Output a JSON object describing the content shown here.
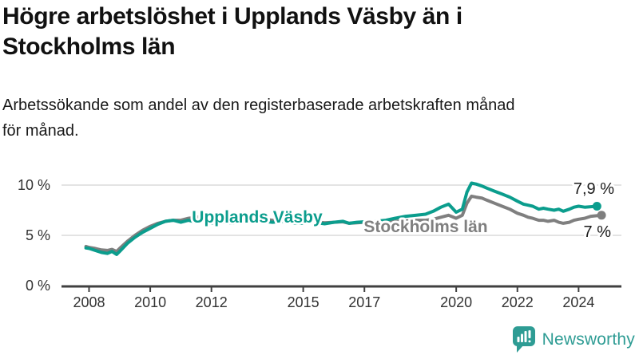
{
  "header": {
    "title": "Högre arbetslöshet i Upplands Väsby än i Stockholms län",
    "subtitle": "Arbetssökande som andel av den registerbaserade arbetskraften månad för månad."
  },
  "colors": {
    "focus_teal": "#0B9D8D",
    "comparison_gray": "#7F7F7F",
    "axis": "#404040",
    "gridline": "#DADADA",
    "tick_text": "#333333",
    "end_label_text": "#1a1a1a",
    "logo_teal": "#2E9C94"
  },
  "chart_data": {
    "type": "line",
    "title": "Högre arbetslöshet i Upplands Väsby än i Stockholms län",
    "subtitle": "Arbetssökande som andel av den registerbaserade arbetskraften månad för månad.",
    "xlabel": "",
    "ylabel": "",
    "unit": "%",
    "grid": "horizontal",
    "legend_position": "inline-labels",
    "x_axis": {
      "range": [
        2007.1,
        2025.4
      ],
      "ticks": [
        {
          "value": 2008,
          "label": "2008"
        },
        {
          "value": 2010,
          "label": "2010"
        },
        {
          "value": 2012,
          "label": "2012"
        },
        {
          "value": 2015,
          "label": "2015"
        },
        {
          "value": 2017,
          "label": "2017"
        },
        {
          "value": 2020,
          "label": "2020"
        },
        {
          "value": 2022,
          "label": "2022"
        },
        {
          "value": 2024,
          "label": "2024"
        }
      ]
    },
    "y_axis": {
      "range": [
        0,
        10.8
      ],
      "ticks": [
        {
          "value": 0,
          "label": "0 %"
        },
        {
          "value": 5,
          "label": "5 %"
        },
        {
          "value": 10,
          "label": "10 %"
        }
      ]
    },
    "series": [
      {
        "name": "Stockholms län",
        "color": "#7F7F7F",
        "end_value": 7.0,
        "end_label": "7 %",
        "points": [
          [
            2007.9,
            3.9
          ],
          [
            2008,
            3.8
          ],
          [
            2008.2,
            3.7
          ],
          [
            2008.4,
            3.55
          ],
          [
            2008.6,
            3.5
          ],
          [
            2008.75,
            3.6
          ],
          [
            2008.9,
            3.4
          ],
          [
            2009,
            3.7
          ],
          [
            2009.25,
            4.4
          ],
          [
            2009.5,
            5.0
          ],
          [
            2009.75,
            5.5
          ],
          [
            2010,
            5.9
          ],
          [
            2010.25,
            6.2
          ],
          [
            2010.5,
            6.4
          ],
          [
            2010.75,
            6.5
          ],
          [
            2011,
            6.5
          ],
          [
            2011.25,
            6.7
          ],
          [
            2011.5,
            6.8
          ],
          [
            2011.75,
            6.9
          ],
          [
            2012,
            6.7
          ],
          [
            2012.35,
            6.7
          ],
          [
            2012.7,
            6.6
          ],
          [
            2013,
            6.7
          ],
          [
            2013.35,
            6.7
          ],
          [
            2013.7,
            6.6
          ],
          [
            2014,
            6.5
          ],
          [
            2014.35,
            6.5
          ],
          [
            2014.7,
            6.4
          ],
          [
            2015,
            6.3
          ],
          [
            2015.35,
            6.35
          ],
          [
            2015.7,
            6.25
          ],
          [
            2016,
            6.3
          ],
          [
            2016.3,
            6.35
          ],
          [
            2016.5,
            6.2
          ],
          [
            2016.75,
            6.25
          ],
          [
            2017,
            6.3
          ],
          [
            2017.35,
            6.35
          ],
          [
            2017.7,
            6.3
          ],
          [
            2018,
            6.4
          ],
          [
            2018.35,
            6.45
          ],
          [
            2018.7,
            6.5
          ],
          [
            2019,
            6.5
          ],
          [
            2019.25,
            6.6
          ],
          [
            2019.5,
            6.8
          ],
          [
            2019.75,
            7.0
          ],
          [
            2020,
            6.7
          ],
          [
            2020.2,
            7.0
          ],
          [
            2020.35,
            8.2
          ],
          [
            2020.5,
            8.9
          ],
          [
            2020.65,
            8.8
          ],
          [
            2020.85,
            8.7
          ],
          [
            2021,
            8.5
          ],
          [
            2021.25,
            8.2
          ],
          [
            2021.5,
            7.9
          ],
          [
            2021.75,
            7.6
          ],
          [
            2022,
            7.2
          ],
          [
            2022.2,
            7.0
          ],
          [
            2022.35,
            6.8
          ],
          [
            2022.5,
            6.7
          ],
          [
            2022.7,
            6.5
          ],
          [
            2022.85,
            6.5
          ],
          [
            2023,
            6.4
          ],
          [
            2023.2,
            6.5
          ],
          [
            2023.35,
            6.3
          ],
          [
            2023.5,
            6.2
          ],
          [
            2023.7,
            6.3
          ],
          [
            2023.85,
            6.5
          ],
          [
            2024,
            6.6
          ],
          [
            2024.2,
            6.7
          ],
          [
            2024.4,
            6.9
          ],
          [
            2024.75,
            7.0
          ]
        ]
      },
      {
        "name": "Upplands Väsby",
        "color": "#0B9D8D",
        "end_value": 7.9,
        "end_label": "7,9 %",
        "points": [
          [
            2007.9,
            3.75
          ],
          [
            2008,
            3.7
          ],
          [
            2008.2,
            3.5
          ],
          [
            2008.4,
            3.3
          ],
          [
            2008.6,
            3.2
          ],
          [
            2008.75,
            3.4
          ],
          [
            2008.9,
            3.1
          ],
          [
            2009,
            3.4
          ],
          [
            2009.25,
            4.2
          ],
          [
            2009.5,
            4.8
          ],
          [
            2009.75,
            5.3
          ],
          [
            2010,
            5.7
          ],
          [
            2010.25,
            6.1
          ],
          [
            2010.5,
            6.4
          ],
          [
            2010.75,
            6.5
          ],
          [
            2011,
            6.3
          ],
          [
            2011.25,
            6.5
          ],
          [
            2011.5,
            6.3
          ],
          [
            2011.75,
            6.4
          ],
          [
            2012,
            6.2
          ],
          [
            2012.35,
            6.3
          ],
          [
            2012.7,
            6.2
          ],
          [
            2013,
            6.4
          ],
          [
            2013.35,
            6.5
          ],
          [
            2013.7,
            6.4
          ],
          [
            2014,
            6.3
          ],
          [
            2014.35,
            6.4
          ],
          [
            2014.7,
            6.2
          ],
          [
            2015,
            6.2
          ],
          [
            2015.35,
            6.3
          ],
          [
            2015.7,
            6.15
          ],
          [
            2016,
            6.3
          ],
          [
            2016.3,
            6.4
          ],
          [
            2016.5,
            6.2
          ],
          [
            2016.75,
            6.3
          ],
          [
            2017,
            6.35
          ],
          [
            2017.35,
            6.4
          ],
          [
            2017.7,
            6.5
          ],
          [
            2018,
            6.7
          ],
          [
            2018.35,
            6.9
          ],
          [
            2018.7,
            7.0
          ],
          [
            2019,
            7.1
          ],
          [
            2019.25,
            7.4
          ],
          [
            2019.5,
            7.8
          ],
          [
            2019.75,
            8.1
          ],
          [
            2020,
            7.3
          ],
          [
            2020.2,
            7.6
          ],
          [
            2020.35,
            9.3
          ],
          [
            2020.5,
            10.2
          ],
          [
            2020.65,
            10.1
          ],
          [
            2020.85,
            9.9
          ],
          [
            2021,
            9.7
          ],
          [
            2021.25,
            9.4
          ],
          [
            2021.5,
            9.1
          ],
          [
            2021.75,
            8.8
          ],
          [
            2022,
            8.4
          ],
          [
            2022.2,
            8.1
          ],
          [
            2022.35,
            8.0
          ],
          [
            2022.5,
            7.9
          ],
          [
            2022.7,
            7.6
          ],
          [
            2022.85,
            7.7
          ],
          [
            2023,
            7.6
          ],
          [
            2023.2,
            7.5
          ],
          [
            2023.35,
            7.6
          ],
          [
            2023.5,
            7.4
          ],
          [
            2023.7,
            7.6
          ],
          [
            2023.85,
            7.8
          ],
          [
            2024,
            7.9
          ],
          [
            2024.2,
            7.8
          ],
          [
            2024.4,
            7.85
          ],
          [
            2024.6,
            7.9
          ]
        ]
      }
    ]
  },
  "logo": {
    "brand": "Newsworthy",
    "icon": "bar-chart-speech-bubble"
  }
}
